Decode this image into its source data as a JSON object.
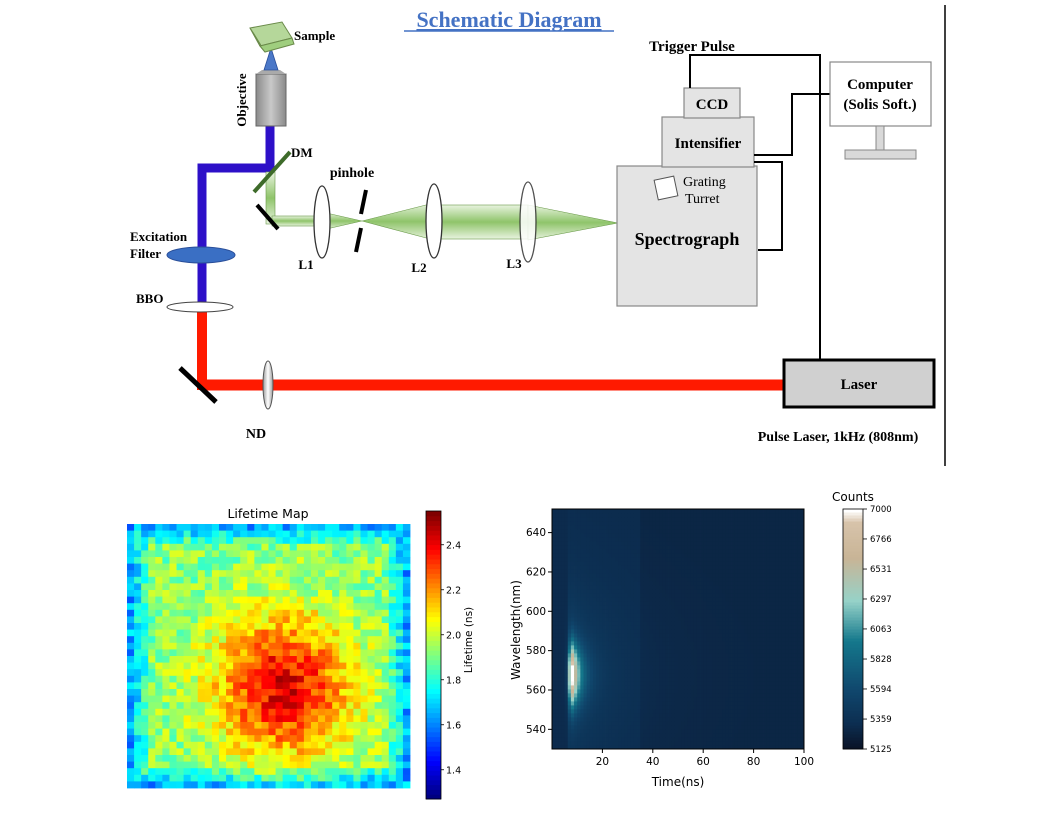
{
  "schematic": {
    "title": "Schematic Diagram",
    "labels": {
      "sample": "Sample",
      "objective": "Objective",
      "dm": "DM",
      "pinhole": "pinhole",
      "excitation_filter_line1": "Excitation",
      "excitation_filter_line2": "Filter",
      "bbo": "BBO",
      "nd": "ND",
      "l1": "L1",
      "l2": "L2",
      "l3": "L3",
      "trigger_pulse": "Trigger Pulse",
      "ccd": "CCD",
      "intensifier": "Intensifier",
      "grating_line1": "Grating",
      "grating_line2": "Turret",
      "spectrograph": "Spectrograph",
      "computer_line1": "Computer",
      "computer_line2": "(Solis Soft.)",
      "laser": "Laser",
      "laser_caption": "Pulse Laser, 1kHz (808nm)"
    },
    "colors": {
      "excitation_beam": "#2d10c8",
      "laser_beam": "#ff1a00",
      "emission_beam": "#8fc46a",
      "title": "#4472c4"
    }
  },
  "chart_data": [
    {
      "type": "heatmap",
      "title": "Lifetime Map",
      "colorbar_label": "Lifetime (ns)",
      "colorbar_ticks": [
        "1.4",
        "1.6",
        "1.8",
        "2.0",
        "2.2",
        "2.4"
      ],
      "colorbar_range": [
        1.27,
        2.55
      ],
      "colormap": "jet",
      "description_of_field": "high lifetime (~2.3-2.5 ns) central blob on a ~1.8-2.0 ns background, ~1.6 ns border",
      "xlabel": "",
      "ylabel": ""
    },
    {
      "type": "heatmap",
      "title": "",
      "xlabel": "Time(ns)",
      "ylabel": "Wavelength(nm)",
      "x_ticks": [
        "20",
        "40",
        "60",
        "80",
        "100"
      ],
      "y_ticks": [
        "540",
        "560",
        "580",
        "600",
        "620",
        "640"
      ],
      "xlim": [
        0,
        100
      ],
      "ylim": [
        530,
        652
      ],
      "colorbar_title": "Counts",
      "colorbar_ticks": [
        "5125",
        "5359",
        "5594",
        "5828",
        "6063",
        "6297",
        "6531",
        "6766",
        "7000"
      ],
      "colorbar_range": [
        5125,
        7000
      ],
      "peak": {
        "time_ns": 8,
        "wavelength_nm": 568,
        "counts": 7000
      },
      "background_counts": 5300
    }
  ]
}
